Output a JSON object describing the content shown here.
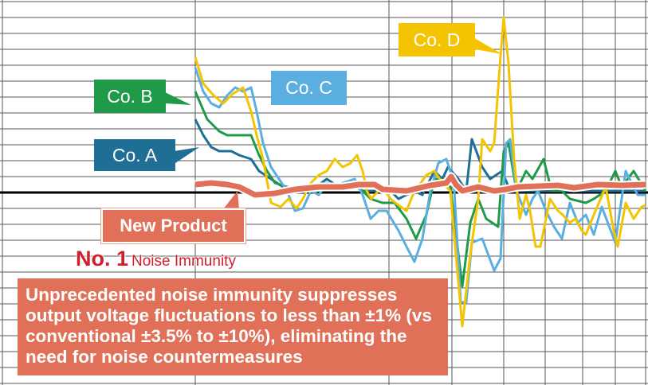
{
  "chart_data": {
    "type": "line",
    "title": "",
    "xlabel": "",
    "ylabel": "",
    "grid": true,
    "baseline": 0,
    "series": [
      {
        "name": "Co. D",
        "color": "#f5c400",
        "points": [
          [
            0,
            8.5
          ],
          [
            10,
            6.85
          ],
          [
            23,
            6.1
          ],
          [
            35,
            5.6
          ],
          [
            47,
            6.2
          ],
          [
            60,
            6.6
          ],
          [
            70,
            5.1
          ],
          [
            77,
            3.6
          ],
          [
            85,
            2.1
          ],
          [
            95,
            -0.65
          ],
          [
            107,
            -0.9
          ],
          [
            117,
            -0.4
          ],
          [
            127,
            -1
          ],
          [
            135,
            -0.4
          ],
          [
            145,
            0.6
          ],
          [
            155,
            1.1
          ],
          [
            165,
            1.35
          ],
          [
            175,
            2.1
          ],
          [
            185,
            1.6
          ],
          [
            195,
            1.85
          ],
          [
            203,
            2.35
          ],
          [
            210,
            1.35
          ],
          [
            215,
            0.1
          ],
          [
            221,
            -0.4
          ],
          [
            225,
            -0.15
          ],
          [
            235,
            0.35
          ],
          [
            245,
            -0.4
          ],
          [
            255,
            -0.8
          ],
          [
            265,
            -1.15
          ],
          [
            275,
            0.1
          ],
          [
            283,
            0.6
          ],
          [
            290,
            1.1
          ],
          [
            300,
            1.35
          ],
          [
            310,
            0.6
          ],
          [
            320,
            0.1
          ],
          [
            327,
            -3.9
          ],
          [
            335,
            -8.4
          ],
          [
            345,
            -3.9
          ],
          [
            355,
            -0.4
          ],
          [
            360,
            3.35
          ],
          [
            370,
            2.6
          ],
          [
            375,
            3.1
          ],
          [
            383,
            8.6
          ],
          [
            387,
            11
          ],
          [
            393,
            8.1
          ],
          [
            400,
            2.1
          ],
          [
            407,
            -1.65
          ],
          [
            415,
            -0.15
          ],
          [
            420,
            -1.15
          ],
          [
            427,
            -3.4
          ],
          [
            433,
            -3.4
          ],
          [
            445,
            -0.4
          ],
          [
            455,
            -1.15
          ],
          [
            461,
            -1.4
          ],
          [
            470,
            -1.9
          ],
          [
            477,
            -1.65
          ],
          [
            485,
            -2.4
          ],
          [
            490,
            -2.65
          ],
          [
            500,
            -1.4
          ],
          [
            515,
            0.35
          ],
          [
            525,
            -2.4
          ],
          [
            530,
            -3.4
          ],
          [
            540,
            -0.65
          ],
          [
            550,
            -1.65
          ],
          [
            560,
            -0.9
          ],
          [
            565,
            -0.8
          ]
        ]
      },
      {
        "name": "Co. C",
        "color": "#5aaee0",
        "points": [
          [
            0,
            7.85
          ],
          [
            10,
            6.35
          ],
          [
            20,
            5.6
          ],
          [
            30,
            5.35
          ],
          [
            40,
            6.1
          ],
          [
            50,
            6.6
          ],
          [
            60,
            6.35
          ],
          [
            70,
            6.6
          ],
          [
            77,
            5.1
          ],
          [
            85,
            3.1
          ],
          [
            95,
            1.6
          ],
          [
            105,
            0.85
          ],
          [
            115,
            0.1
          ],
          [
            125,
            -1.15
          ],
          [
            135,
            -1
          ],
          [
            145,
            0.1
          ],
          [
            155,
            -0.15
          ],
          [
            165,
            0.6
          ],
          [
            175,
            0.35
          ],
          [
            185,
            0.6
          ],
          [
            200,
            0.85
          ],
          [
            210,
            -0.15
          ],
          [
            220,
            -1.65
          ],
          [
            230,
            -1.15
          ],
          [
            240,
            -1.15
          ],
          [
            255,
            -2.4
          ],
          [
            265,
            -3.4
          ],
          [
            275,
            -4.35
          ],
          [
            285,
            -2.9
          ],
          [
            295,
            0.1
          ],
          [
            305,
            1.85
          ],
          [
            315,
            2.1
          ],
          [
            320,
            1.35
          ],
          [
            325,
            0.1
          ],
          [
            333,
            -6.9
          ],
          [
            340,
            -6.9
          ],
          [
            347,
            -3.15
          ],
          [
            360,
            -2.9
          ],
          [
            375,
            -4.9
          ],
          [
            383,
            -4.15
          ],
          [
            390,
            3.1
          ],
          [
            395,
            3.35
          ],
          [
            403,
            0.1
          ],
          [
            415,
            -1.4
          ],
          [
            423,
            -0.4
          ],
          [
            430,
            0.1
          ],
          [
            440,
            -1.15
          ],
          [
            450,
            -2.15
          ],
          [
            460,
            -2.9
          ],
          [
            470,
            -0.65
          ],
          [
            480,
            -1.9
          ],
          [
            490,
            -1.4
          ],
          [
            500,
            -2.65
          ],
          [
            510,
            -0.9
          ],
          [
            527,
            -3.15
          ],
          [
            540,
            1.35
          ],
          [
            555,
            -0.15
          ],
          [
            565,
            -0.15
          ]
        ]
      },
      {
        "name": "Co. B",
        "color": "#1e9a48",
        "points": [
          [
            0,
            6.35
          ],
          [
            15,
            4.6
          ],
          [
            30,
            3.85
          ],
          [
            40,
            3.6
          ],
          [
            55,
            3.6
          ],
          [
            70,
            3.6
          ],
          [
            80,
            2.35
          ],
          [
            90,
            1.35
          ],
          [
            100,
            0.6
          ],
          [
            115,
            0.35
          ],
          [
            135,
            0.1
          ],
          [
            155,
            0.1
          ],
          [
            175,
            0.35
          ],
          [
            195,
            0.6
          ],
          [
            210,
            0.1
          ],
          [
            220,
            -0.4
          ],
          [
            235,
            -0.65
          ],
          [
            250,
            -0.65
          ],
          [
            265,
            -1.65
          ],
          [
            277,
            -2.9
          ],
          [
            290,
            -1.4
          ],
          [
            300,
            0.85
          ],
          [
            310,
            0.85
          ],
          [
            320,
            0.35
          ],
          [
            335,
            -5.9
          ],
          [
            345,
            -1.9
          ],
          [
            355,
            -0.4
          ],
          [
            365,
            -1.65
          ],
          [
            380,
            -2.15
          ],
          [
            387,
            2.6
          ],
          [
            393,
            3.1
          ],
          [
            403,
            0.1
          ],
          [
            415,
            1.35
          ],
          [
            423,
            0.85
          ],
          [
            437,
            2.1
          ],
          [
            447,
            0.1
          ],
          [
            460,
            0.1
          ],
          [
            470,
            -0.4
          ],
          [
            490,
            -0.65
          ],
          [
            500,
            -0.4
          ],
          [
            515,
            0.1
          ],
          [
            527,
            1.35
          ],
          [
            535,
            0.35
          ],
          [
            550,
            1.35
          ],
          [
            565,
            0.1
          ]
        ]
      },
      {
        "name": "Co. A",
        "color": "#1f6e96",
        "points": [
          [
            0,
            4.6
          ],
          [
            10,
            3.6
          ],
          [
            20,
            2.85
          ],
          [
            30,
            2.6
          ],
          [
            45,
            2.6
          ],
          [
            55,
            2.35
          ],
          [
            70,
            2.1
          ],
          [
            80,
            1.35
          ],
          [
            95,
            0.85
          ],
          [
            110,
            0.35
          ],
          [
            125,
            0.1
          ],
          [
            145,
            0.1
          ],
          [
            165,
            0.85
          ],
          [
            180,
            0.35
          ],
          [
            195,
            0.6
          ],
          [
            210,
            0.1
          ],
          [
            225,
            0.1
          ],
          [
            245,
            0.1
          ],
          [
            255,
            -0.4
          ],
          [
            265,
            -0.15
          ],
          [
            275,
            0.1
          ],
          [
            285,
            -0.15
          ],
          [
            300,
            1.35
          ],
          [
            310,
            0.85
          ],
          [
            317,
            1.6
          ],
          [
            330,
            0.85
          ],
          [
            340,
            0.1
          ],
          [
            347,
            3.35
          ],
          [
            360,
            1.6
          ],
          [
            370,
            0.85
          ],
          [
            385,
            1.35
          ],
          [
            395,
            0.1
          ],
          [
            415,
            0.1
          ],
          [
            455,
            0.1
          ],
          [
            565,
            0.1
          ]
        ]
      },
      {
        "name": "New Product",
        "color": "#e07058",
        "points": [
          [
            0,
            0.5
          ],
          [
            20,
            0.6
          ],
          [
            40,
            0.5
          ],
          [
            55,
            0.35
          ],
          [
            75,
            -0.15
          ],
          [
            100,
            -0.05
          ],
          [
            125,
            0.2
          ],
          [
            155,
            0.35
          ],
          [
            185,
            0.35
          ],
          [
            205,
            0.5
          ],
          [
            225,
            0.5
          ],
          [
            235,
            0.2
          ],
          [
            265,
            0.1
          ],
          [
            295,
            0.45
          ],
          [
            315,
            0.6
          ],
          [
            321,
            1
          ],
          [
            327,
            0.5
          ],
          [
            335,
            0.1
          ],
          [
            355,
            0.35
          ],
          [
            375,
            0.1
          ],
          [
            390,
            0.2
          ],
          [
            405,
            0.35
          ],
          [
            455,
            0.45
          ],
          [
            475,
            0.3
          ],
          [
            505,
            0.5
          ],
          [
            535,
            0.45
          ],
          [
            565,
            0.5
          ]
        ]
      }
    ]
  },
  "labels": {
    "co_d": "Co. D",
    "co_c": "Co. C",
    "co_b": "Co. B",
    "co_a": "Co. A",
    "new_product": "New Product",
    "rank": "No. 1",
    "rank_subject": "Noise Immunity",
    "message": "Unprecedented noise immunity suppresses output voltage fluctuations to less than ±1% (vs conventional ±3.5% to ±10%), eliminating the need for noise countermeasures"
  }
}
